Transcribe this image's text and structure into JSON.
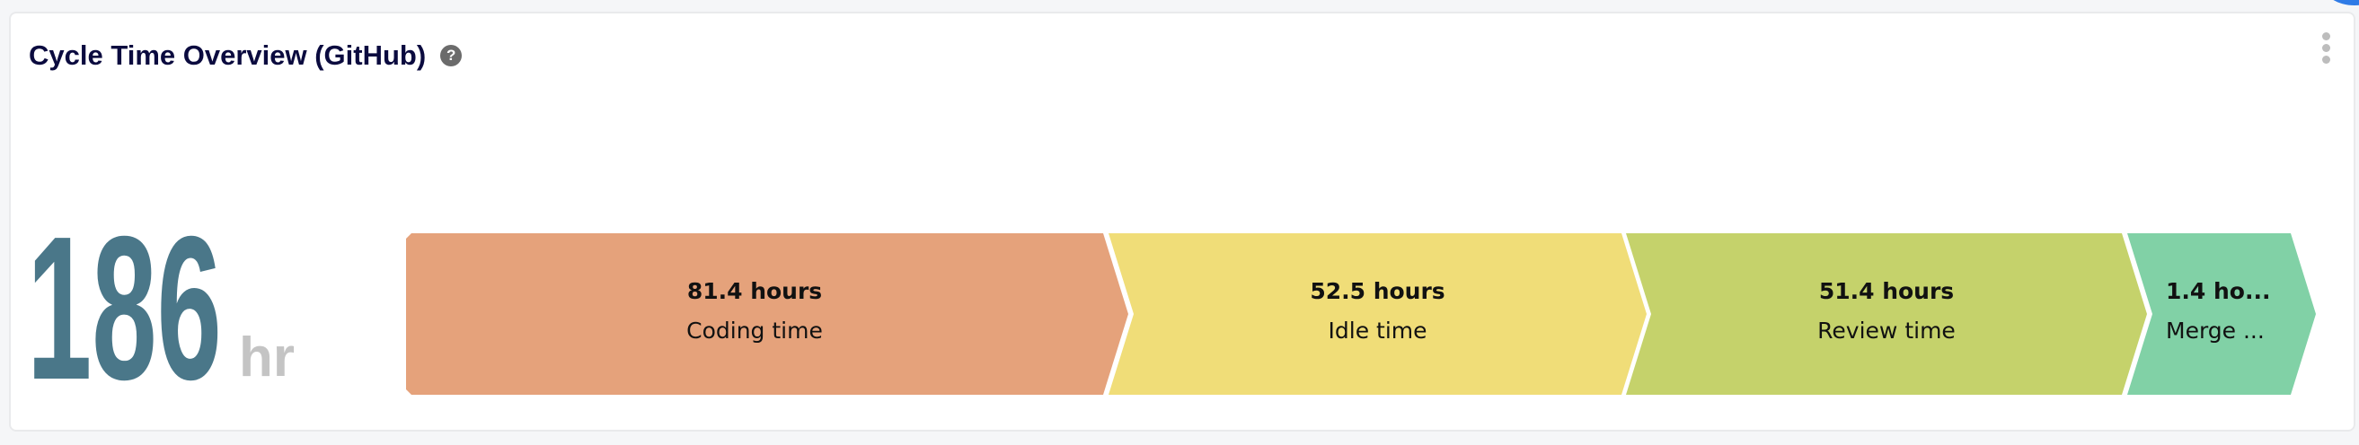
{
  "widget": {
    "title": "Cycle Time Overview (GitHub)",
    "help_icon": "question-circle-icon",
    "menu_icon": "kebab-vertical-icon"
  },
  "total": {
    "value": "186",
    "unit": "hr",
    "color": "#4a7789"
  },
  "stages": [
    {
      "value": "81.4 hours",
      "label": "Coding time",
      "hours": 81.4,
      "color": "#e5a27b"
    },
    {
      "value": "52.5 hours",
      "label": "Idle time",
      "hours": 52.5,
      "color": "#f0dd78"
    },
    {
      "value": "51.4 hours",
      "label": "Review time",
      "hours": 51.4,
      "color": "#c5d26b"
    },
    {
      "value": "1.4 ho...",
      "label": "Merge ...",
      "hours": 1.4,
      "color": "#81d1a6"
    }
  ]
}
